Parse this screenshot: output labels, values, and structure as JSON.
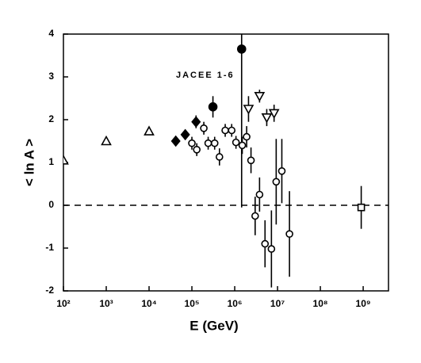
{
  "chart_data": {
    "type": "scatter",
    "log_x": true,
    "annotation": "JACEE 1-6",
    "x_label": "E (GeV)",
    "y_label": "< ln A >",
    "xlim": [
      100,
      3900000000
    ],
    "ylim": [
      -2,
      4
    ],
    "xticks": [
      {
        "value": 100,
        "label": "10²"
      },
      {
        "value": 1000,
        "label": "10³"
      },
      {
        "value": 10000,
        "label": "10⁴"
      },
      {
        "value": 100000,
        "label": "10⁵"
      },
      {
        "value": 1000000,
        "label": "10⁶"
      },
      {
        "value": 10000000,
        "label": "10⁷"
      },
      {
        "value": 100000000,
        "label": "10⁸"
      },
      {
        "value": 1000000000,
        "label": "10⁹"
      }
    ],
    "yticks": [
      -2,
      -1,
      0,
      1,
      2,
      3,
      4
    ],
    "hline": 0,
    "series": [
      {
        "marker": "triangle-up",
        "color": "#000000",
        "x": [
          100,
          1000,
          10000
        ],
        "values": [
          1.05,
          1.5,
          1.73
        ],
        "errors": [
          0.05,
          0.05,
          0.05
        ]
      },
      {
        "marker": "diamond",
        "color": "#000000",
        "x": [
          42000,
          70000,
          125000
        ],
        "values": [
          1.5,
          1.65,
          1.95
        ],
        "errors": [
          0.12,
          0.12,
          0.15
        ]
      },
      {
        "marker": "circle-filled",
        "color": "#000000",
        "x": [
          310000,
          1450000
        ],
        "values": [
          2.3,
          3.65
        ],
        "errors": [
          0.25,
          3.7
        ]
      },
      {
        "marker": "circle-open",
        "color": "#000000",
        "x": [
          100000,
          130000,
          190000,
          240000,
          340000,
          440000,
          600000,
          850000,
          1070000,
          1500000,
          1900000,
          2400000,
          3000000,
          3800000,
          5100000,
          7200000,
          9300000,
          12600000,
          19000000
        ],
        "values": [
          1.45,
          1.3,
          1.8,
          1.45,
          1.45,
          1.13,
          1.75,
          1.75,
          1.47,
          1.4,
          1.6,
          1.05,
          -0.25,
          0.25,
          -0.9,
          -1.02,
          0.55,
          0.8,
          -0.67
        ],
        "errors": [
          0.15,
          0.15,
          0.15,
          0.15,
          0.15,
          0.2,
          0.15,
          0.15,
          0.15,
          0.2,
          0.25,
          0.3,
          0.45,
          0.4,
          0.55,
          0.9,
          1.0,
          0.75,
          1.0
        ]
      },
      {
        "marker": "triangle-down",
        "color": "#000000",
        "x": [
          2100000,
          3800000,
          5600000,
          8300000
        ],
        "values": [
          2.25,
          2.55,
          2.05,
          2.15
        ],
        "errors": [
          0.3,
          0.15,
          0.2,
          0.2
        ]
      },
      {
        "marker": "square",
        "color": "#000000",
        "x": [
          900000000
        ],
        "values": [
          -0.05
        ],
        "errors": [
          0.5
        ]
      }
    ]
  }
}
